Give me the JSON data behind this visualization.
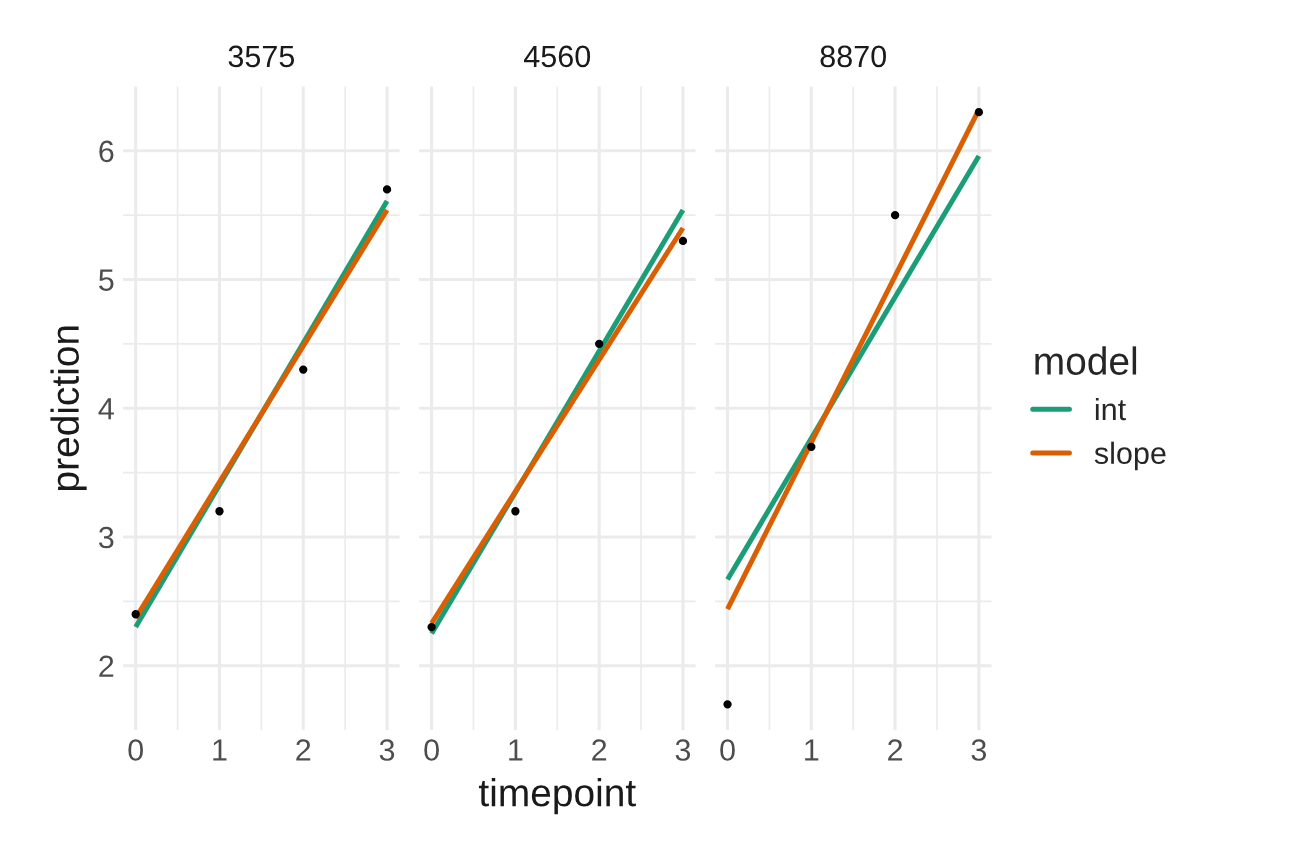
{
  "chart_data": [
    {
      "type": "line",
      "title": "3575",
      "ylabel": "prediction",
      "xlim": [
        -0.15,
        3.15
      ],
      "ylim": [
        1.5,
        6.5
      ],
      "xticks": [
        0,
        {
          "value": 0.5,
          "label": null
        },
        1,
        {
          "value": 1.5,
          "label": null
        },
        2,
        {
          "value": 2.5,
          "label": null
        },
        3
      ],
      "yticks": [
        2,
        {
          "value": 2.5,
          "label": null
        },
        3,
        {
          "value": 3.5,
          "label": null
        },
        4,
        {
          "value": 4.5,
          "label": null
        },
        5,
        {
          "value": 5.5,
          "label": null
        },
        6
      ],
      "grid": true,
      "series": [
        {
          "color": "#1b9e77",
          "x": [
            0,
            3
          ],
          "values": [
            2.3,
            5.61
          ]
        },
        {
          "color": "#d95f02",
          "x": [
            0,
            3
          ],
          "values": [
            2.37,
            5.54
          ]
        },
        {
          "type": "scatter",
          "color": "#000000",
          "x": [
            0,
            1,
            2,
            3
          ],
          "values": [
            2.4,
            3.2,
            4.3,
            5.7
          ]
        }
      ]
    },
    {
      "type": "line",
      "title": "4560",
      "xlabel": "timepoint",
      "tick_labels": "x",
      "xlim": [
        -0.15,
        3.15
      ],
      "ylim": [
        1.5,
        6.5
      ],
      "xticks": [
        0,
        {
          "value": 0.5,
          "label": null
        },
        1,
        {
          "value": 1.5,
          "label": null
        },
        2,
        {
          "value": 2.5,
          "label": null
        },
        3
      ],
      "yticks": [
        2,
        {
          "value": 2.5,
          "label": null
        },
        3,
        {
          "value": 3.5,
          "label": null
        },
        4,
        {
          "value": 4.5,
          "label": null
        },
        5,
        {
          "value": 5.5,
          "label": null
        },
        6
      ],
      "grid": true,
      "series": [
        {
          "color": "#1b9e77",
          "x": [
            0,
            3
          ],
          "values": [
            2.25,
            5.54
          ]
        },
        {
          "color": "#d95f02",
          "x": [
            0,
            3
          ],
          "values": [
            2.33,
            5.4
          ]
        },
        {
          "type": "scatter",
          "color": "#000000",
          "x": [
            0,
            1,
            2,
            3
          ],
          "values": [
            2.3,
            3.2,
            4.5,
            5.3
          ]
        }
      ]
    },
    {
      "type": "line",
      "title": "8870",
      "legend_title": "model",
      "legend": "right",
      "tick_labels": "x",
      "xlim": [
        -0.15,
        3.15
      ],
      "ylim": [
        1.5,
        6.5
      ],
      "xticks": [
        0,
        {
          "value": 0.5,
          "label": null
        },
        1,
        {
          "value": 1.5,
          "label": null
        },
        2,
        {
          "value": 2.5,
          "label": null
        },
        3
      ],
      "yticks": [
        2,
        {
          "value": 2.5,
          "label": null
        },
        3,
        {
          "value": 3.5,
          "label": null
        },
        4,
        {
          "value": 4.5,
          "label": null
        },
        5,
        {
          "value": 5.5,
          "label": null
        },
        6
      ],
      "grid": true,
      "series": [
        {
          "name": "int",
          "color": "#1b9e77",
          "x": [
            0,
            3
          ],
          "values": [
            2.67,
            5.96
          ]
        },
        {
          "name": "slope",
          "color": "#d95f02",
          "x": [
            0,
            3
          ],
          "values": [
            2.44,
            6.32
          ]
        },
        {
          "type": "scatter",
          "color": "#000000",
          "x": [
            0,
            1,
            2,
            3
          ],
          "values": [
            1.7,
            3.7,
            5.5,
            6.3
          ]
        }
      ]
    }
  ]
}
